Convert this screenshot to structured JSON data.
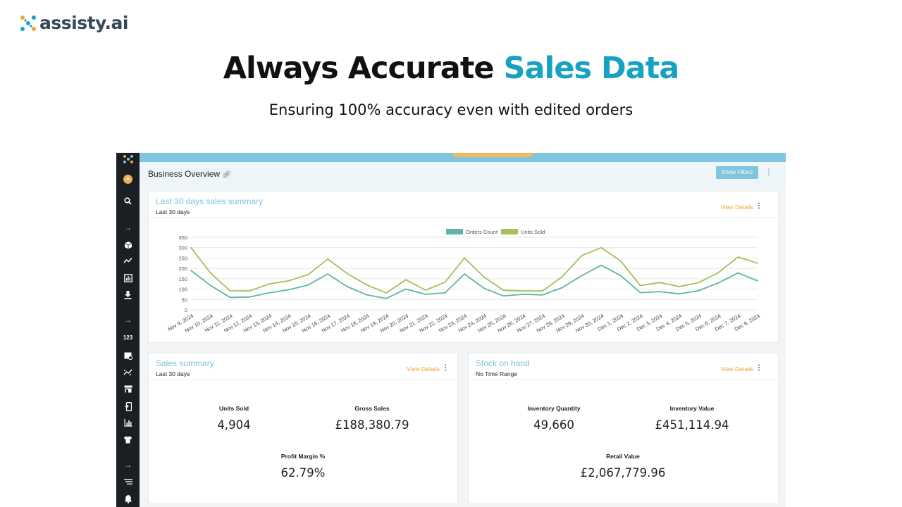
{
  "brand": {
    "name": "assisty",
    "tld": ".ai"
  },
  "hero": {
    "title_main": "Always Accurate",
    "title_accent": "Sales Data",
    "subtitle": "Ensuring 100% accuracy even with edited orders"
  },
  "colors": {
    "accent": "#17a2c2",
    "sidebar": "#1b1f24",
    "orders_line": "#5fb5a5",
    "units_line": "#a4bf5b",
    "link_orange": "#f0a030"
  },
  "sidebar": {
    "avatar_letter": "A",
    "icons": [
      "app-logo-icon",
      "avatar",
      "search-icon",
      "arrow-right-icon",
      "box-icon",
      "trend-icon",
      "bar-report-icon",
      "download-icon",
      "arrow-right-icon",
      "numbers-icon",
      "calendar-icon",
      "scatter-trend-icon",
      "store-icon",
      "mobile-icon",
      "bar-chart-icon",
      "shirt-icon",
      "arrow-right-icon",
      "list-icon",
      "bell-icon"
    ]
  },
  "header": {
    "title": "Business Overview",
    "filters_button": "Show Filters"
  },
  "sales_chart_card": {
    "title": "Last 30 days sales summary",
    "subtitle": "Last 30 days",
    "view_details": "View Details"
  },
  "sales_summary": {
    "title": "Sales summary",
    "subtitle": "Last 30 days",
    "view_details": "View Details",
    "stats": [
      {
        "label": "Units Sold",
        "value": "4,904"
      },
      {
        "label": "Gross Sales",
        "value": "£188,380.79"
      },
      {
        "label": "Profit Margin %",
        "value": "62.79%"
      }
    ]
  },
  "stock_on_hand": {
    "title": "Stock on hand",
    "subtitle": "No Time Range",
    "view_details": "View Details",
    "stats": [
      {
        "label": "Inventory Quantity",
        "value": "49,660"
      },
      {
        "label": "Inventory Value",
        "value": "£451,114.94"
      },
      {
        "label": "Retail Value",
        "value": "£2,067,779.96"
      }
    ]
  },
  "chart_data": {
    "type": "line",
    "title": "Last 30 days sales summary",
    "categories": [
      "Nov 9, 2024",
      "Nov 10, 2024",
      "Nov 11, 2024",
      "Nov 12, 2024",
      "Nov 13, 2024",
      "Nov 14, 2024",
      "Nov 15, 2024",
      "Nov 16, 2024",
      "Nov 17, 2024",
      "Nov 18, 2024",
      "Nov 19, 2024",
      "Nov 20, 2024",
      "Nov 21, 2024",
      "Nov 22, 2024",
      "Nov 23, 2024",
      "Nov 24, 2024",
      "Nov 25, 2024",
      "Nov 26, 2024",
      "Nov 27, 2024",
      "Nov 28, 2024",
      "Nov 29, 2024",
      "Nov 30, 2024",
      "Dec 1, 2024",
      "Dec 2, 2024",
      "Dec 3, 2024",
      "Dec 4, 2024",
      "Dec 5, 2024",
      "Dec 6, 2024",
      "Dec 7, 2024",
      "Dec 8, 2024"
    ],
    "series": [
      {
        "name": "Orders Count",
        "color": "#5fb5a5",
        "values": [
          190,
          118,
          60,
          62,
          82,
          97,
          120,
          173,
          112,
          72,
          55,
          100,
          75,
          82,
          173,
          104,
          67,
          75,
          72,
          107,
          165,
          215,
          165,
          83,
          88,
          77,
          93,
          130,
          178,
          140
        ]
      },
      {
        "name": "Units Sold",
        "color": "#a4bf5b",
        "values": [
          300,
          178,
          92,
          91,
          125,
          140,
          170,
          245,
          175,
          120,
          82,
          145,
          95,
          133,
          250,
          158,
          94,
          91,
          91,
          160,
          262,
          300,
          235,
          117,
          132,
          112,
          132,
          180,
          255,
          225
        ]
      }
    ],
    "yticks": [
      0,
      50,
      100,
      150,
      200,
      250,
      300,
      350
    ],
    "ylim": [
      0,
      350
    ],
    "legend": "top-center",
    "grid": true
  }
}
